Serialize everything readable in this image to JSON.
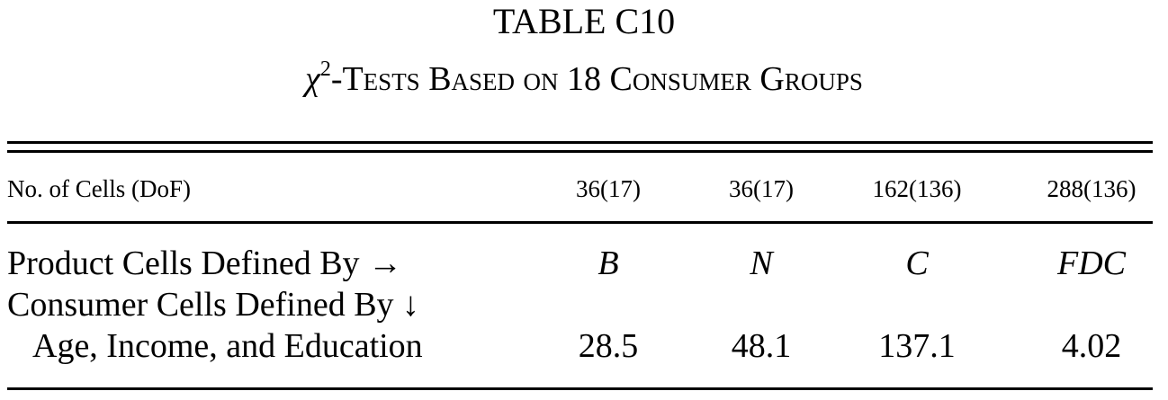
{
  "title": "TABLE C10",
  "subtitle": {
    "chi": "χ",
    "superscript": "2",
    "text": "-Tests Based on 18 Consumer Groups"
  },
  "table": {
    "dof_row": {
      "label": "No. of Cells (DoF)",
      "values": [
        "36(17)",
        "36(17)",
        "162(136)",
        "288(136)"
      ]
    },
    "product_row": {
      "label": "Product Cells Defined By →",
      "values": [
        "B",
        "N",
        "C",
        "FDC"
      ]
    },
    "consumer_row": {
      "label": "Consumer Cells Defined By ↓"
    },
    "data_row": {
      "label": "Age, Income, and Education",
      "values": [
        "28.5",
        "48.1",
        "137.1",
        "4.02"
      ]
    }
  }
}
